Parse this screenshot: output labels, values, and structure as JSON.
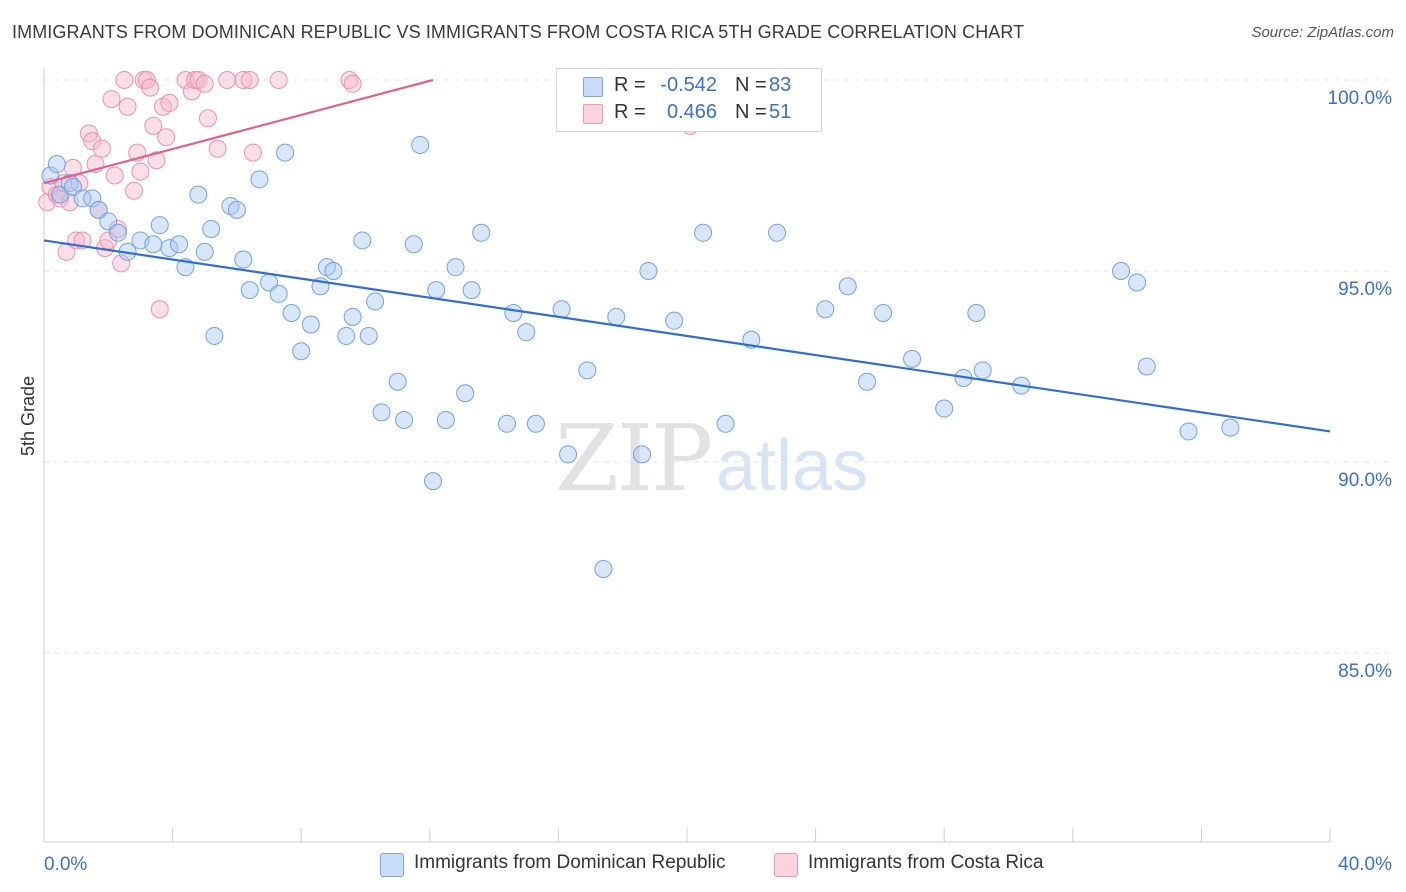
{
  "title": "IMMIGRANTS FROM DOMINICAN REPUBLIC VS IMMIGRANTS FROM COSTA RICA 5TH GRADE CORRELATION CHART",
  "source": "Source: ZipAtlas.com",
  "watermark": {
    "zip": "ZIP",
    "atlas": "atlas"
  },
  "legend_box": {
    "rows": [
      {
        "r_label": "R =",
        "r_value": "-0.542",
        "n_label": "N =",
        "n_value": "83",
        "color": "#a9c8f0"
      },
      {
        "r_label": "R =",
        "r_value": "0.466",
        "n_label": "N =",
        "n_value": "51",
        "color": "#f5b8cb"
      }
    ]
  },
  "bottom_legend": {
    "items": [
      {
        "label": "Immigrants from Dominican Republic",
        "color": "#a9c8f0"
      },
      {
        "label": "Immigrants from Costa Rica",
        "color": "#f5b8cb"
      }
    ]
  },
  "chart_data": {
    "type": "scatter",
    "title": "IMMIGRANTS FROM DOMINICAN REPUBLIC VS IMMIGRANTS FROM COSTA RICA 5TH GRADE CORRELATION CHART",
    "xlabel": "",
    "ylabel": "5th Grade",
    "xlim": [
      0,
      40
    ],
    "ylim": [
      80.5,
      100.5
    ],
    "x_tick_labels": [
      "0.0%",
      "40.0%"
    ],
    "y_ticks": [
      100,
      95,
      90,
      85
    ],
    "y_tick_labels": [
      "100.0%",
      "95.0%",
      "90.0%",
      "85.0%"
    ],
    "grid": "horizontal dashed",
    "legend_position": "top-center",
    "colors": {
      "blue": "#6fa3e6",
      "blue_line": "#2f6fd1",
      "pink": "#ef8fb0",
      "pink_line": "#e0608e"
    },
    "series": [
      {
        "name": "Immigrants from Dominican Republic",
        "color": "blue",
        "trend": {
          "x": [
            0,
            40
          ],
          "y": [
            95.8,
            90.8
          ]
        },
        "points": [
          [
            0.2,
            97.5
          ],
          [
            0.4,
            97.8
          ],
          [
            0.5,
            97.0
          ],
          [
            0.8,
            97.3
          ],
          [
            0.9,
            97.2
          ],
          [
            1.2,
            96.9
          ],
          [
            1.5,
            96.9
          ],
          [
            1.7,
            96.6
          ],
          [
            2.0,
            96.3
          ],
          [
            2.3,
            96.0
          ],
          [
            2.6,
            95.5
          ],
          [
            3.0,
            95.8
          ],
          [
            3.6,
            96.2
          ],
          [
            3.4,
            95.7
          ],
          [
            3.9,
            95.6
          ],
          [
            4.2,
            95.7
          ],
          [
            4.4,
            95.1
          ],
          [
            4.8,
            97.0
          ],
          [
            5.0,
            95.5
          ],
          [
            5.2,
            96.1
          ],
          [
            5.3,
            93.3
          ],
          [
            5.8,
            96.7
          ],
          [
            6.0,
            96.6
          ],
          [
            6.2,
            95.3
          ],
          [
            6.4,
            94.5
          ],
          [
            6.7,
            97.4
          ],
          [
            7.0,
            94.7
          ],
          [
            7.3,
            94.4
          ],
          [
            7.5,
            98.1
          ],
          [
            7.7,
            93.9
          ],
          [
            8.0,
            92.9
          ],
          [
            8.3,
            93.6
          ],
          [
            8.6,
            94.6
          ],
          [
            8.8,
            95.1
          ],
          [
            9.0,
            95.0
          ],
          [
            9.4,
            93.3
          ],
          [
            9.6,
            93.8
          ],
          [
            9.9,
            95.8
          ],
          [
            10.1,
            93.3
          ],
          [
            10.3,
            94.2
          ],
          [
            10.5,
            91.3
          ],
          [
            11.0,
            92.1
          ],
          [
            11.2,
            91.1
          ],
          [
            11.5,
            95.7
          ],
          [
            11.7,
            98.3
          ],
          [
            12.1,
            89.5
          ],
          [
            12.2,
            94.5
          ],
          [
            12.5,
            91.1
          ],
          [
            12.8,
            95.1
          ],
          [
            13.1,
            91.8
          ],
          [
            13.3,
            94.5
          ],
          [
            13.6,
            96.0
          ],
          [
            14.4,
            91.0
          ],
          [
            14.6,
            93.9
          ],
          [
            15.0,
            93.4
          ],
          [
            15.3,
            91.0
          ],
          [
            16.1,
            94.0
          ],
          [
            16.3,
            90.2
          ],
          [
            16.9,
            92.4
          ],
          [
            17.8,
            93.8
          ],
          [
            17.4,
            87.2
          ],
          [
            18.6,
            90.2
          ],
          [
            18.8,
            95.0
          ],
          [
            19.6,
            93.7
          ],
          [
            20.5,
            96.0
          ],
          [
            21.2,
            91.0
          ],
          [
            22.0,
            93.2
          ],
          [
            22.8,
            96.0
          ],
          [
            24.3,
            94.0
          ],
          [
            25.0,
            94.6
          ],
          [
            25.6,
            92.1
          ],
          [
            26.1,
            93.9
          ],
          [
            27.0,
            92.7
          ],
          [
            28.0,
            91.4
          ],
          [
            28.6,
            92.2
          ],
          [
            29.0,
            93.9
          ],
          [
            29.2,
            92.4
          ],
          [
            30.4,
            92.0
          ],
          [
            33.5,
            95.0
          ],
          [
            34.0,
            94.7
          ],
          [
            34.3,
            92.5
          ],
          [
            35.6,
            90.8
          ],
          [
            36.9,
            90.9
          ]
        ]
      },
      {
        "name": "Immigrants from Costa Rica",
        "color": "pink",
        "trend": {
          "x": [
            0,
            12.1
          ],
          "y": [
            97.3,
            100.0
          ]
        },
        "points": [
          [
            0.1,
            96.8
          ],
          [
            0.2,
            97.2
          ],
          [
            0.4,
            97.0
          ],
          [
            0.5,
            96.9
          ],
          [
            0.6,
            97.3
          ],
          [
            0.7,
            95.5
          ],
          [
            0.8,
            96.8
          ],
          [
            0.9,
            97.7
          ],
          [
            1.0,
            95.8
          ],
          [
            1.1,
            97.3
          ],
          [
            1.2,
            95.8
          ],
          [
            1.4,
            98.6
          ],
          [
            1.5,
            98.4
          ],
          [
            1.6,
            97.8
          ],
          [
            1.7,
            96.6
          ],
          [
            1.8,
            98.2
          ],
          [
            1.9,
            95.6
          ],
          [
            2.0,
            95.8
          ],
          [
            2.1,
            99.5
          ],
          [
            2.2,
            97.5
          ],
          [
            2.3,
            96.1
          ],
          [
            2.4,
            95.2
          ],
          [
            2.5,
            100.0
          ],
          [
            2.6,
            99.3
          ],
          [
            2.8,
            97.1
          ],
          [
            2.9,
            98.1
          ],
          [
            3.0,
            97.6
          ],
          [
            3.1,
            100.0
          ],
          [
            3.2,
            100.0
          ],
          [
            3.3,
            99.8
          ],
          [
            3.4,
            98.8
          ],
          [
            3.5,
            97.9
          ],
          [
            3.6,
            94.0
          ],
          [
            3.7,
            99.3
          ],
          [
            3.8,
            98.5
          ],
          [
            3.9,
            99.4
          ],
          [
            4.4,
            100.0
          ],
          [
            4.6,
            99.7
          ],
          [
            4.7,
            100.0
          ],
          [
            4.8,
            100.0
          ],
          [
            5.0,
            99.9
          ],
          [
            5.1,
            99.0
          ],
          [
            5.4,
            98.2
          ],
          [
            5.7,
            100.0
          ],
          [
            6.2,
            100.0
          ],
          [
            6.4,
            100.0
          ],
          [
            6.5,
            98.1
          ],
          [
            7.3,
            100.0
          ],
          [
            9.5,
            100.0
          ],
          [
            9.6,
            99.9
          ],
          [
            20.1,
            98.8
          ]
        ]
      }
    ]
  }
}
